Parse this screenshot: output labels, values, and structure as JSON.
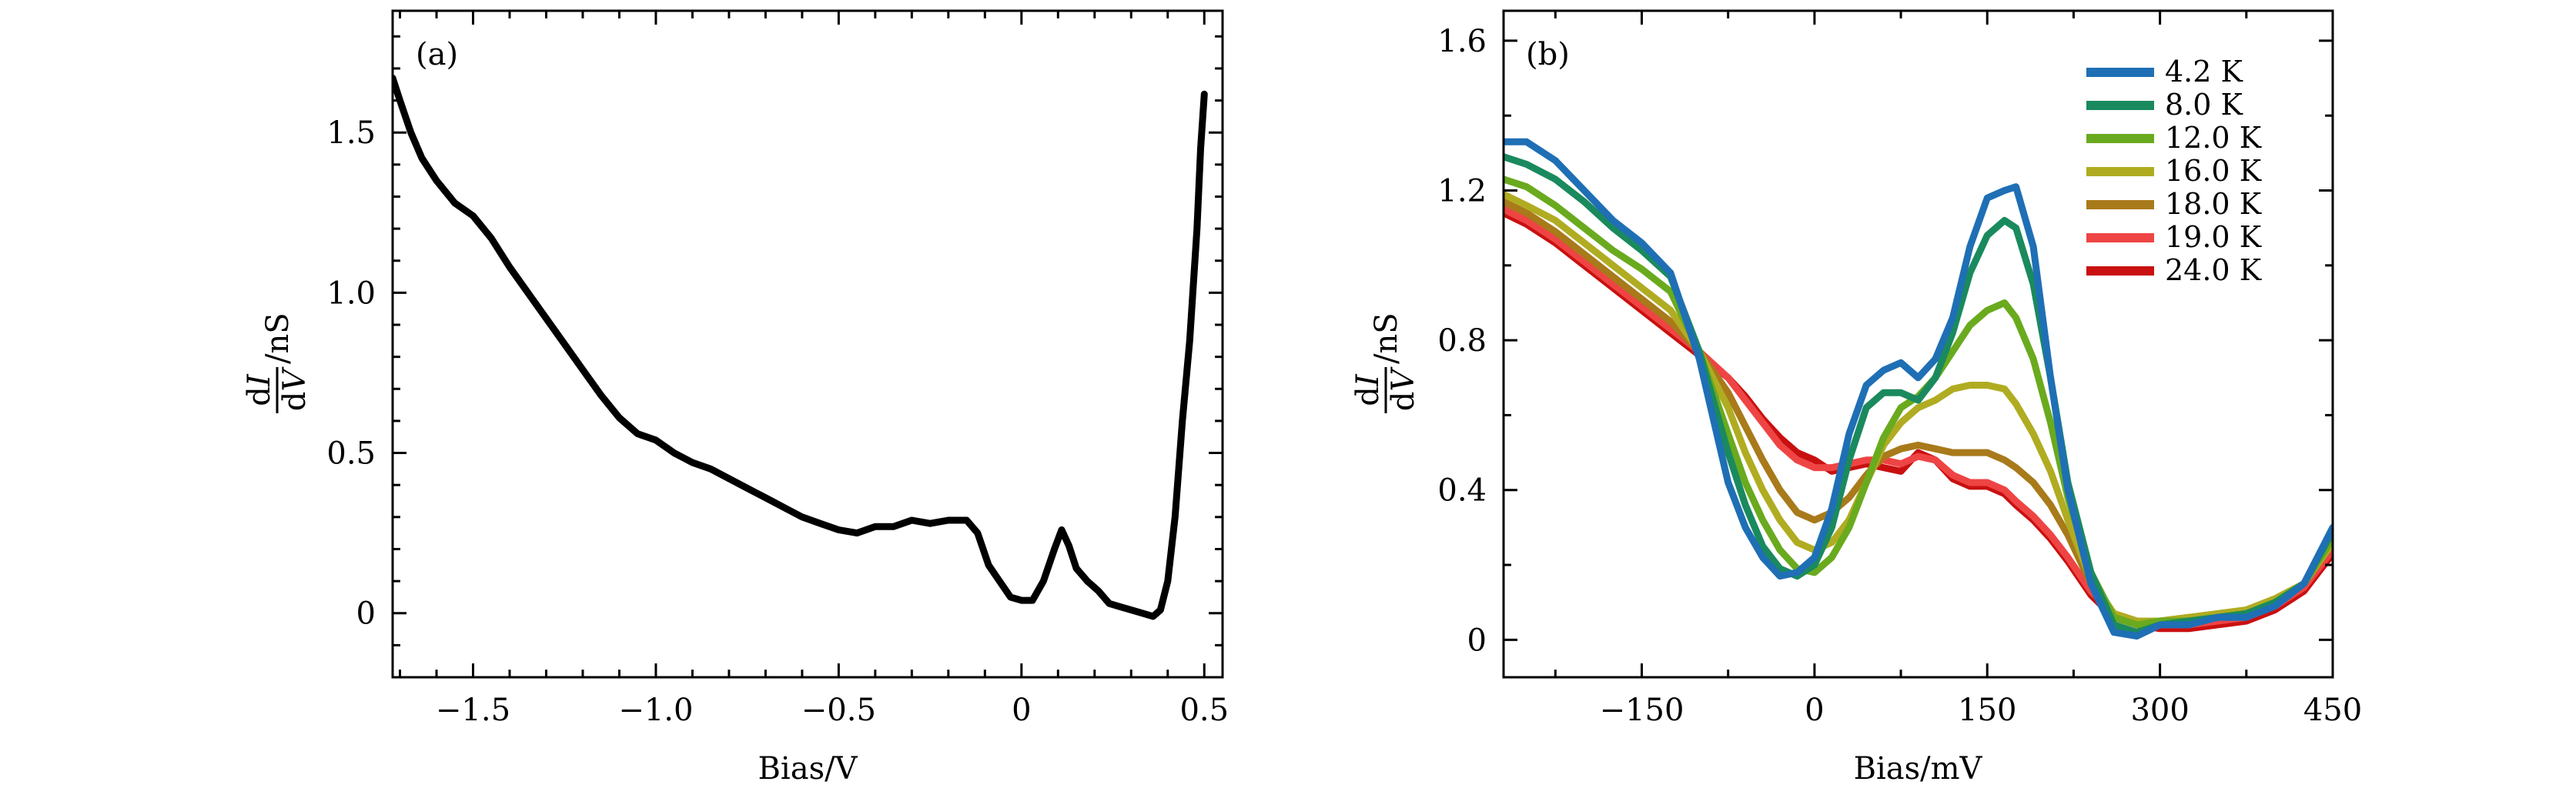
{
  "chart_data": [
    {
      "type": "line",
      "panel_label": "(a)",
      "xlabel": "Bias/V",
      "ylabel": "dI/dV/nS",
      "ylabel_num_d": "d",
      "ylabel_num_var": "I",
      "ylabel_den_d": "d",
      "ylabel_den_var": "V",
      "ylabel_unit": "/nS",
      "xlim": [
        -1.72,
        0.55
      ],
      "ylim": [
        -0.2,
        1.88
      ],
      "xticks": [
        -1.5,
        -1.0,
        -0.5,
        0,
        0.5
      ],
      "xtick_labels": [
        "−1.5",
        "−1.0",
        "−0.5",
        "0",
        "0.5"
      ],
      "yticks": [
        0,
        0.5,
        1.0,
        1.5
      ],
      "ytick_labels": [
        "0",
        "0.5",
        "1.0",
        "1.5"
      ],
      "series": [
        {
          "name": "dI/dV",
          "color": "#000000",
          "x": [
            -1.72,
            -1.7,
            -1.67,
            -1.64,
            -1.6,
            -1.55,
            -1.5,
            -1.45,
            -1.4,
            -1.35,
            -1.3,
            -1.25,
            -1.2,
            -1.15,
            -1.1,
            -1.05,
            -1.0,
            -0.95,
            -0.9,
            -0.85,
            -0.8,
            -0.75,
            -0.7,
            -0.65,
            -0.6,
            -0.55,
            -0.5,
            -0.45,
            -0.4,
            -0.35,
            -0.3,
            -0.25,
            -0.2,
            -0.15,
            -0.12,
            -0.09,
            -0.06,
            -0.03,
            0.0,
            0.03,
            0.06,
            0.09,
            0.11,
            0.13,
            0.15,
            0.18,
            0.21,
            0.24,
            0.27,
            0.3,
            0.33,
            0.36,
            0.38,
            0.4,
            0.42,
            0.44,
            0.46,
            0.48,
            0.49,
            0.5
          ],
          "y": [
            1.67,
            1.6,
            1.5,
            1.42,
            1.35,
            1.28,
            1.24,
            1.17,
            1.08,
            1.0,
            0.92,
            0.84,
            0.76,
            0.68,
            0.61,
            0.56,
            0.54,
            0.5,
            0.47,
            0.45,
            0.42,
            0.39,
            0.36,
            0.33,
            0.3,
            0.28,
            0.26,
            0.25,
            0.27,
            0.27,
            0.29,
            0.28,
            0.29,
            0.29,
            0.25,
            0.15,
            0.1,
            0.05,
            0.04,
            0.04,
            0.1,
            0.2,
            0.26,
            0.21,
            0.14,
            0.1,
            0.07,
            0.03,
            0.02,
            0.01,
            0.0,
            -0.01,
            0.01,
            0.1,
            0.3,
            0.6,
            0.85,
            1.2,
            1.45,
            1.62
          ]
        }
      ]
    },
    {
      "type": "line",
      "panel_label": "(b)",
      "xlabel": "Bias/mV",
      "ylabel": "dI/dV/nS",
      "ylabel_num_d": "d",
      "ylabel_num_var": "I",
      "ylabel_den_d": "d",
      "ylabel_den_var": "V",
      "ylabel_unit": "/nS",
      "xlim": [
        -270,
        450
      ],
      "ylim": [
        -0.1,
        1.68
      ],
      "xticks": [
        -150,
        0,
        150,
        300,
        450
      ],
      "xtick_labels": [
        "−150",
        "0",
        "150",
        "300",
        "450"
      ],
      "yticks": [
        0,
        0.4,
        0.8,
        1.2,
        1.6
      ],
      "ytick_labels": [
        "0",
        "0.4",
        "0.8",
        "1.2",
        "1.6"
      ],
      "legend": "top-right",
      "x": [
        -270,
        -250,
        -225,
        -200,
        -175,
        -150,
        -125,
        -100,
        -75,
        -60,
        -45,
        -30,
        -15,
        0,
        15,
        30,
        45,
        60,
        75,
        90,
        105,
        120,
        135,
        150,
        165,
        175,
        190,
        205,
        220,
        240,
        260,
        280,
        300,
        325,
        350,
        375,
        400,
        425,
        450
      ],
      "series": [
        {
          "name": "4.2 K",
          "color": "#1f6fb5",
          "values": [
            1.33,
            1.33,
            1.28,
            1.2,
            1.12,
            1.06,
            0.98,
            0.75,
            0.42,
            0.3,
            0.22,
            0.17,
            0.18,
            0.22,
            0.35,
            0.55,
            0.68,
            0.72,
            0.74,
            0.7,
            0.75,
            0.86,
            1.05,
            1.18,
            1.2,
            1.21,
            1.05,
            0.7,
            0.4,
            0.15,
            0.02,
            0.01,
            0.04,
            0.04,
            0.06,
            0.06,
            0.09,
            0.15,
            0.3
          ]
        },
        {
          "name": "8.0 K",
          "color": "#1a8a5e",
          "values": [
            1.29,
            1.27,
            1.23,
            1.17,
            1.1,
            1.04,
            0.97,
            0.77,
            0.5,
            0.36,
            0.25,
            0.19,
            0.17,
            0.2,
            0.3,
            0.48,
            0.62,
            0.66,
            0.66,
            0.64,
            0.7,
            0.82,
            0.98,
            1.08,
            1.12,
            1.1,
            0.95,
            0.7,
            0.42,
            0.18,
            0.04,
            0.02,
            0.04,
            0.05,
            0.06,
            0.07,
            0.1,
            0.15,
            0.29
          ]
        },
        {
          "name": "12.0 K",
          "color": "#6aaa1e",
          "values": [
            1.23,
            1.21,
            1.16,
            1.1,
            1.04,
            0.99,
            0.93,
            0.77,
            0.55,
            0.42,
            0.32,
            0.24,
            0.19,
            0.18,
            0.22,
            0.3,
            0.42,
            0.54,
            0.62,
            0.65,
            0.7,
            0.77,
            0.84,
            0.88,
            0.9,
            0.86,
            0.75,
            0.58,
            0.38,
            0.18,
            0.06,
            0.04,
            0.05,
            0.05,
            0.06,
            0.07,
            0.1,
            0.15,
            0.27
          ]
        },
        {
          "name": "16.0 K",
          "color": "#b0ac22",
          "values": [
            1.19,
            1.16,
            1.12,
            1.06,
            1.0,
            0.94,
            0.88,
            0.77,
            0.62,
            0.5,
            0.4,
            0.32,
            0.26,
            0.24,
            0.26,
            0.32,
            0.42,
            0.52,
            0.58,
            0.62,
            0.64,
            0.67,
            0.68,
            0.68,
            0.67,
            0.63,
            0.55,
            0.45,
            0.32,
            0.16,
            0.07,
            0.05,
            0.05,
            0.06,
            0.07,
            0.08,
            0.11,
            0.15,
            0.26
          ]
        },
        {
          "name": "18.0 K",
          "color": "#a87a1a",
          "values": [
            1.17,
            1.14,
            1.09,
            1.03,
            0.97,
            0.91,
            0.85,
            0.77,
            0.66,
            0.57,
            0.48,
            0.4,
            0.34,
            0.32,
            0.34,
            0.38,
            0.44,
            0.49,
            0.51,
            0.52,
            0.51,
            0.5,
            0.5,
            0.5,
            0.48,
            0.46,
            0.42,
            0.36,
            0.28,
            0.15,
            0.07,
            0.05,
            0.05,
            0.06,
            0.06,
            0.07,
            0.1,
            0.15,
            0.26
          ]
        },
        {
          "name": "19.0 K",
          "color": "#ef4444",
          "values": [
            1.15,
            1.12,
            1.07,
            1.01,
            0.95,
            0.89,
            0.83,
            0.77,
            0.7,
            0.64,
            0.58,
            0.52,
            0.48,
            0.46,
            0.46,
            0.47,
            0.48,
            0.48,
            0.47,
            0.49,
            0.48,
            0.44,
            0.42,
            0.42,
            0.4,
            0.37,
            0.33,
            0.28,
            0.22,
            0.13,
            0.07,
            0.05,
            0.04,
            0.04,
            0.05,
            0.06,
            0.09,
            0.14,
            0.24
          ]
        },
        {
          "name": "24.0 K",
          "color": "#c91010",
          "values": [
            1.14,
            1.11,
            1.06,
            1.0,
            0.94,
            0.88,
            0.82,
            0.76,
            0.7,
            0.65,
            0.59,
            0.54,
            0.5,
            0.48,
            0.45,
            0.46,
            0.47,
            0.46,
            0.45,
            0.5,
            0.48,
            0.43,
            0.41,
            0.41,
            0.39,
            0.36,
            0.32,
            0.27,
            0.21,
            0.12,
            0.06,
            0.04,
            0.03,
            0.03,
            0.04,
            0.05,
            0.08,
            0.13,
            0.23
          ]
        }
      ]
    }
  ]
}
